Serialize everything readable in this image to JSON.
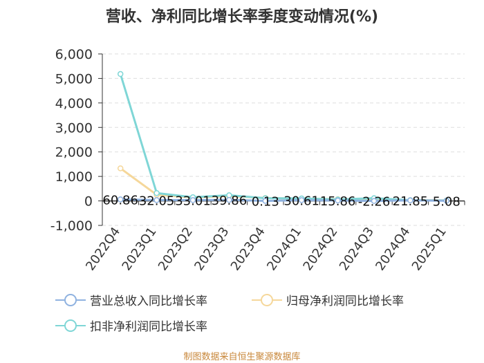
{
  "chart_data": {
    "type": "line",
    "title": "营收、净利同比增长率季度变动情况(%)",
    "categories": [
      "2022Q4",
      "2023Q1",
      "2023Q2",
      "2023Q3",
      "2023Q4",
      "2024Q1",
      "2024Q2",
      "2024Q3",
      "2024Q4",
      "2025Q1"
    ],
    "ylim": [
      -1000,
      6000
    ],
    "yticks": [
      -1000,
      0,
      1000,
      2000,
      3000,
      4000,
      5000,
      6000
    ],
    "ytick_labels": [
      "-1,000",
      "0",
      "1,000",
      "2,000",
      "3,000",
      "4,000",
      "5,000",
      "6,000"
    ],
    "grid": true,
    "legend_position": "bottom",
    "series": [
      {
        "name": "营业总收入同比增长率",
        "color": "#8fb2e0",
        "values": [
          60.86,
          32.05,
          33.01,
          39.86,
          0.13,
          30.61,
          15.86,
          -2.26,
          21.85,
          5.08
        ],
        "labels": [
          "60.86",
          "32.05",
          "33.01",
          "39.86",
          "0.13",
          "30.61",
          "15.86",
          "-2.26",
          "21.85",
          "5.08"
        ]
      },
      {
        "name": "归母净利润同比增长率",
        "color": "#f5d79a",
        "values": [
          1330,
          250,
          140,
          200,
          120,
          95,
          70,
          40,
          30,
          20
        ]
      },
      {
        "name": "扣非净利润同比增长率",
        "color": "#7fd6d6",
        "values": [
          5180,
          320,
          150,
          230,
          110,
          100,
          60,
          110,
          30,
          15
        ]
      }
    ]
  },
  "source": "制图数据来自恒生聚源数据库"
}
